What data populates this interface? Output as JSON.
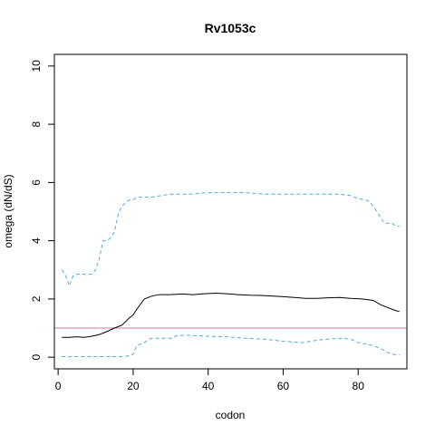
{
  "chart_data": {
    "type": "line",
    "title": "Rv1053c",
    "xlabel": "codon",
    "ylabel": "omega (dN/dS)",
    "xlim": [
      -1,
      93
    ],
    "ylim": [
      -0.4,
      10.4
    ],
    "xticks": [
      0,
      20,
      40,
      60,
      80
    ],
    "yticks": [
      0,
      2,
      4,
      6,
      8,
      10
    ],
    "grid": false,
    "reference_line": {
      "y": 1,
      "color": "#cc79a7"
    },
    "series": [
      {
        "style": "solid",
        "color": "#000000",
        "x": [
          1,
          3,
          5,
          7,
          9,
          11,
          13,
          15,
          17,
          19,
          20,
          21,
          23,
          25,
          27,
          30,
          33,
          36,
          39,
          42,
          45,
          48,
          51,
          54,
          57,
          60,
          63,
          66,
          69,
          72,
          75,
          78,
          81,
          84,
          86,
          88,
          90,
          91
        ],
        "y": [
          0.68,
          0.68,
          0.7,
          0.68,
          0.72,
          0.78,
          0.88,
          1.0,
          1.1,
          1.35,
          1.45,
          1.65,
          2.0,
          2.1,
          2.15,
          2.15,
          2.17,
          2.15,
          2.18,
          2.2,
          2.18,
          2.15,
          2.13,
          2.12,
          2.1,
          2.08,
          2.05,
          2.02,
          2.02,
          2.04,
          2.05,
          2.02,
          2.0,
          1.95,
          1.8,
          1.7,
          1.6,
          1.57
        ]
      },
      {
        "style": "dashed",
        "color": "#4fa8e6",
        "x": [
          1,
          2,
          3,
          4,
          5,
          6,
          7,
          8,
          9,
          10,
          11,
          12,
          13,
          14,
          15,
          16,
          17,
          18,
          19,
          20,
          21,
          22,
          23,
          25,
          30,
          35,
          40,
          45,
          50,
          55,
          60,
          65,
          70,
          75,
          78,
          80,
          82,
          83,
          85,
          87,
          89,
          90,
          91
        ],
        "y": [
          3.0,
          2.8,
          2.45,
          2.8,
          2.85,
          2.85,
          2.85,
          2.85,
          2.85,
          3.0,
          3.4,
          4.0,
          4.0,
          4.1,
          4.3,
          4.9,
          5.2,
          5.3,
          5.4,
          5.4,
          5.5,
          5.5,
          5.5,
          5.5,
          5.6,
          5.6,
          5.65,
          5.65,
          5.65,
          5.6,
          5.6,
          5.6,
          5.6,
          5.6,
          5.55,
          5.45,
          5.4,
          5.35,
          5.0,
          4.6,
          4.6,
          4.5,
          4.5
        ]
      },
      {
        "style": "dashed",
        "color": "#4fa8e6",
        "x": [
          1,
          3,
          5,
          7,
          9,
          11,
          13,
          15,
          17,
          19,
          20,
          21,
          22,
          23,
          24,
          25,
          26,
          30,
          31,
          32,
          33,
          35,
          40,
          45,
          50,
          55,
          60,
          65,
          70,
          75,
          78,
          80,
          82,
          84,
          86,
          88,
          90,
          91
        ],
        "y": [
          0.02,
          0.02,
          0.02,
          0.02,
          0.02,
          0.02,
          0.02,
          0.02,
          0.02,
          0.05,
          0.1,
          0.4,
          0.45,
          0.5,
          0.6,
          0.65,
          0.65,
          0.65,
          0.7,
          0.75,
          0.75,
          0.75,
          0.72,
          0.7,
          0.65,
          0.62,
          0.55,
          0.5,
          0.6,
          0.65,
          0.62,
          0.5,
          0.45,
          0.4,
          0.3,
          0.15,
          0.08,
          0.08
        ]
      }
    ]
  }
}
